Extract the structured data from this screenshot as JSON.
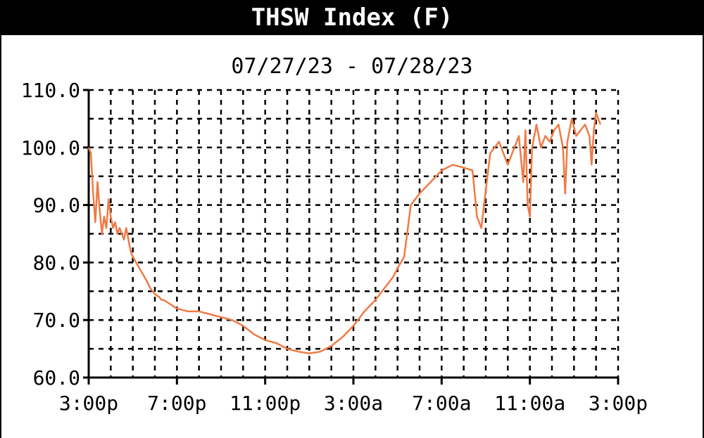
{
  "chart_data": {
    "type": "line",
    "title": "THSW Index (F)",
    "subtitle": "07/27/23 - 07/28/23",
    "xlabel": "",
    "ylabel": "",
    "ylim": [
      60,
      110
    ],
    "y_ticks": [
      60,
      70,
      80,
      90,
      100,
      110
    ],
    "y_tick_labels": [
      "60.0",
      "70.0",
      "80.0",
      "90.0",
      "100.0",
      "110.0"
    ],
    "x_range_hours": [
      0,
      24
    ],
    "x_ticks_hours": [
      0,
      4,
      8,
      12,
      16,
      20,
      24
    ],
    "x_tick_labels": [
      "3:00p",
      "7:00p",
      "11:00p",
      "3:00a",
      "7:00a",
      "11:00a",
      "3:00p"
    ],
    "grid": true,
    "series_color": "#f07a44",
    "series": [
      {
        "x_hours": [
          0,
          0.1,
          0.2,
          0.3,
          0.4,
          0.5,
          0.6,
          0.7,
          0.8,
          0.9,
          1.0,
          1.1,
          1.2,
          1.3,
          1.4,
          1.5,
          1.6,
          1.7,
          1.8,
          1.9,
          2.0,
          2.3,
          2.6,
          2.8,
          3.0,
          3.2,
          3.3,
          3.4,
          3.6,
          3.8,
          4.0,
          4.5,
          5.0,
          5.5,
          6.0,
          6.5,
          7.0,
          7.5,
          8.0,
          8.5,
          9.0,
          9.5,
          10.0,
          10.5,
          11.0,
          11.5,
          12.0,
          12.5,
          13.0,
          13.3,
          13.5,
          13.8,
          14.0,
          14.3,
          14.6,
          15.0,
          15.5,
          16.0,
          16.5,
          17.0,
          17.4,
          17.6,
          17.8,
          18.2,
          18.6,
          19.0,
          19.5,
          19.7,
          19.8,
          19.9,
          20.0,
          20.1,
          20.3,
          20.5,
          20.7,
          20.9,
          21.1,
          21.3,
          21.4,
          21.5,
          21.6,
          21.7,
          21.9,
          22.1,
          22.3,
          22.5,
          22.7,
          22.8,
          22.9,
          23.0,
          23.2
        ],
        "values": [
          100,
          99,
          92,
          87,
          94,
          89,
          85,
          88,
          86,
          91,
          88,
          86,
          87,
          85,
          86,
          85,
          84,
          86,
          84,
          82,
          81,
          79,
          77,
          75.5,
          74.5,
          74,
          73.5,
          73.5,
          73,
          72.5,
          72,
          71.5,
          71.5,
          71,
          70.5,
          70,
          69,
          67.5,
          66.5,
          66,
          65,
          64.5,
          64.2,
          64.5,
          65.5,
          67,
          69,
          71.5,
          73.5,
          75,
          76,
          77.5,
          79,
          81,
          90,
          92,
          94,
          96,
          97,
          96.5,
          96,
          88,
          86,
          99,
          101,
          97,
          102,
          94,
          103,
          90,
          88,
          100,
          104,
          100,
          102,
          101,
          103,
          104,
          102,
          100,
          92,
          101,
          105,
          102,
          103,
          104,
          102,
          97,
          103,
          106,
          104
        ]
      }
    ]
  }
}
